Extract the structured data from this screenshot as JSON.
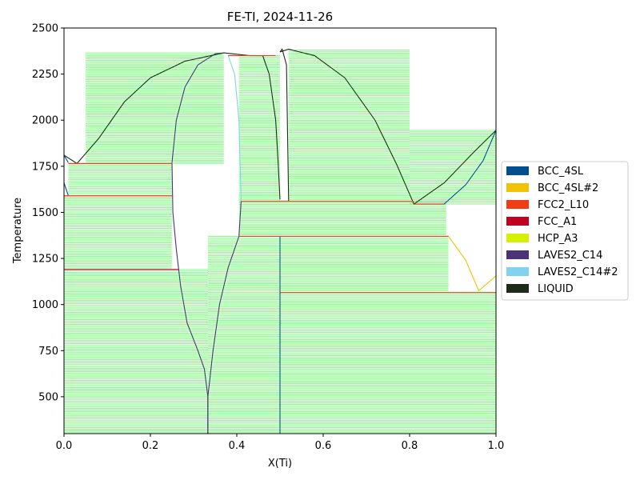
{
  "chart_data": {
    "type": "line",
    "title": "FE-TI, 2024-11-26",
    "xlabel": "X(Ti)",
    "ylabel": "Temperature",
    "xlim": [
      0.0,
      1.0
    ],
    "ylim": [
      300,
      2500
    ],
    "x_ticks": [
      "0.0",
      "0.2",
      "0.4",
      "0.6",
      "0.8",
      "1.0"
    ],
    "y_ticks": [
      "500",
      "750",
      "1000",
      "1250",
      "1500",
      "1750",
      "2000",
      "2250",
      "2500"
    ],
    "grid": false,
    "legend_position": "center-right",
    "tie_line_color": "#00ff00",
    "legend": [
      {
        "name": "BCC_4SL",
        "color": "#004f8f"
      },
      {
        "name": "BCC_4SL#2",
        "color": "#f2c200"
      },
      {
        "name": "FCC2_L10",
        "color": "#f23c14"
      },
      {
        "name": "FCC_A1",
        "color": "#bf0020"
      },
      {
        "name": "HCP_A3",
        "color": "#d6f000"
      },
      {
        "name": "LAVES2_C14",
        "color": "#4b3279"
      },
      {
        "name": "LAVES2_C14#2",
        "color": "#80d2f0"
      },
      {
        "name": "LIQUID",
        "color": "#1e2b18"
      }
    ],
    "boundaries": [
      {
        "phase": "LIQUID",
        "points": [
          [
            0.0,
            1810
          ],
          [
            0.03,
            1765
          ],
          [
            0.08,
            1900
          ],
          [
            0.14,
            2100
          ],
          [
            0.2,
            2230
          ],
          [
            0.28,
            2320
          ],
          [
            0.37,
            2365
          ],
          [
            0.43,
            2350
          ]
        ]
      },
      {
        "phase": "LAVES2_C14",
        "points": [
          [
            0.25,
            1770
          ],
          [
            0.26,
            2000
          ],
          [
            0.28,
            2180
          ],
          [
            0.31,
            2300
          ],
          [
            0.35,
            2360
          ],
          [
            0.37,
            2365
          ]
        ]
      },
      {
        "phase": "LAVES2_C14#2",
        "points": [
          [
            0.38,
            2350
          ],
          [
            0.395,
            2250
          ],
          [
            0.405,
            2000
          ],
          [
            0.41,
            1560
          ]
        ]
      },
      {
        "phase": "LAVES2_C14",
        "points": [
          [
            0.25,
            1770
          ],
          [
            0.252,
            1500
          ],
          [
            0.26,
            1300
          ],
          [
            0.27,
            1100
          ],
          [
            0.285,
            900
          ],
          [
            0.31,
            750
          ],
          [
            0.325,
            650
          ],
          [
            0.333,
            500
          ],
          [
            0.333,
            300
          ]
        ]
      },
      {
        "phase": "LAVES2_C14",
        "points": [
          [
            0.333,
            300
          ],
          [
            0.333,
            500
          ],
          [
            0.345,
            750
          ],
          [
            0.36,
            1000
          ],
          [
            0.38,
            1200
          ],
          [
            0.405,
            1370
          ],
          [
            0.41,
            1560
          ]
        ]
      },
      {
        "phase": "LIQUID",
        "points": [
          [
            0.43,
            2350
          ],
          [
            0.46,
            2350
          ],
          [
            0.475,
            2250
          ],
          [
            0.49,
            2000
          ],
          [
            0.495,
            1800
          ],
          [
            0.5,
            1570
          ]
        ]
      },
      {
        "phase": "LIQUID",
        "points": [
          [
            0.5,
            2370
          ],
          [
            0.505,
            2385
          ],
          [
            0.515,
            2300
          ],
          [
            0.52,
            1560
          ]
        ]
      },
      {
        "phase": "LIQUID",
        "points": [
          [
            0.5,
            2370
          ],
          [
            0.52,
            2385
          ],
          [
            0.58,
            2350
          ],
          [
            0.65,
            2230
          ],
          [
            0.72,
            2000
          ],
          [
            0.77,
            1760
          ],
          [
            0.81,
            1545
          ],
          [
            0.88,
            1660
          ],
          [
            0.95,
            1830
          ],
          [
            1.0,
            1945
          ]
        ]
      },
      {
        "phase": "BCC_4SL",
        "points": [
          [
            0.81,
            1545
          ],
          [
            0.88,
            1545
          ],
          [
            0.93,
            1650
          ],
          [
            0.97,
            1780
          ],
          [
            1.0,
            1945
          ]
        ]
      },
      {
        "phase": "BCC_4SL",
        "points": [
          [
            0.5,
            300
          ],
          [
            0.5,
            1370
          ]
        ]
      },
      {
        "phase": "BCC_4SL",
        "points": [
          [
            0.0,
            1660
          ],
          [
            0.01,
            1590
          ]
        ]
      },
      {
        "phase": "BCC_4SL",
        "points": [
          [
            0.0,
            1810
          ],
          [
            0.01,
            1770
          ]
        ]
      },
      {
        "phase": "BCC_4SL#2",
        "points": [
          [
            0.89,
            1370
          ],
          [
            0.93,
            1240
          ],
          [
            0.96,
            1075
          ],
          [
            1.0,
            1155
          ]
        ]
      }
    ],
    "invariant_lines": [
      {
        "temperature": 1765,
        "x_range": [
          0.01,
          0.25
        ],
        "phase": "FCC2_L10"
      },
      {
        "temperature": 1590,
        "x_range": [
          0.0,
          0.25
        ],
        "phase": "FCC2_L10"
      },
      {
        "temperature": 1190,
        "x_range": [
          0.0,
          0.265
        ],
        "phase": "FCC_A1"
      },
      {
        "temperature": 2350,
        "x_range": [
          0.38,
          0.49
        ],
        "phase": "FCC2_L10"
      },
      {
        "temperature": 1560,
        "x_range": [
          0.41,
          0.81
        ],
        "phase": "FCC2_L10"
      },
      {
        "temperature": 1545,
        "x_range": [
          0.81,
          0.88
        ],
        "phase": "FCC2_L10"
      },
      {
        "temperature": 1370,
        "x_range": [
          0.405,
          0.89
        ],
        "phase": "FCC2_L10"
      },
      {
        "temperature": 1065,
        "x_range": [
          0.5,
          1.0
        ],
        "phase": "FCC2_L10"
      }
    ],
    "tie_line_regions": [
      {
        "x_range": [
          0.0,
          0.333
        ],
        "t_range": [
          300,
          1190
        ]
      },
      {
        "x_range": [
          0.0,
          0.25
        ],
        "t_range": [
          1190,
          1590
        ]
      },
      {
        "x_range": [
          0.01,
          0.25
        ],
        "t_range": [
          1590,
          1765
        ]
      },
      {
        "x_range": [
          0.333,
          0.5
        ],
        "t_range": [
          300,
          1370
        ]
      },
      {
        "x_range": [
          0.5,
          1.0
        ],
        "t_range": [
          300,
          1065
        ]
      },
      {
        "x_range": [
          0.5,
          0.89
        ],
        "t_range": [
          1065,
          1370
        ]
      },
      {
        "x_range": [
          0.405,
          0.885
        ],
        "t_range": [
          1370,
          1560
        ]
      },
      {
        "x_range": [
          0.405,
          0.5
        ],
        "t_range": [
          1560,
          2350
        ]
      },
      {
        "x_range": [
          0.52,
          0.8
        ],
        "t_range": [
          1560,
          2380
        ]
      },
      {
        "x_range": [
          0.8,
          1.0
        ],
        "t_range": [
          1545,
          1945
        ]
      },
      {
        "x_range": [
          0.05,
          0.37
        ],
        "t_range": [
          1765,
          2365
        ]
      }
    ]
  }
}
